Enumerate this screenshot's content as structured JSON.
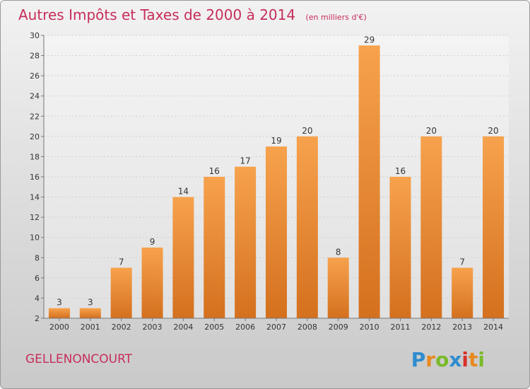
{
  "header": {
    "title": "Autres Impôts et Taxes de 2000 à 2014",
    "unit": "(en milliers d'€)"
  },
  "footer": {
    "commune": "GELLENONCOURT",
    "brand": [
      "P",
      "r",
      "o",
      "x",
      "i",
      "t",
      "i"
    ],
    "brand_colors": [
      "#2e8ccf",
      "#e8891e",
      "#7aba2a",
      "#2e8ccf",
      "#d8312a",
      "#e8891e",
      "#7aba2a"
    ]
  },
  "colors": {
    "bar_light": "#f7a24d",
    "bar_dark": "#d4701e",
    "title": "#c62e5a",
    "grid": "#cfcfcf"
  },
  "chart_data": {
    "type": "bar",
    "title": "Autres Impôts et Taxes de 2000 à 2014",
    "subtitle": "(en milliers d'€)",
    "categories": [
      "2000",
      "2001",
      "2002",
      "2003",
      "2004",
      "2005",
      "2006",
      "2007",
      "2008",
      "2009",
      "2010",
      "2011",
      "2012",
      "2013",
      "2014"
    ],
    "values": [
      3,
      3,
      7,
      9,
      14,
      16,
      17,
      19,
      20,
      8,
      29,
      16,
      20,
      7,
      20
    ],
    "ylim": [
      2,
      30
    ],
    "yticks": [
      2,
      4,
      6,
      8,
      10,
      12,
      14,
      16,
      18,
      20,
      22,
      24,
      26,
      28,
      30
    ],
    "grid": true,
    "legend": "none"
  }
}
